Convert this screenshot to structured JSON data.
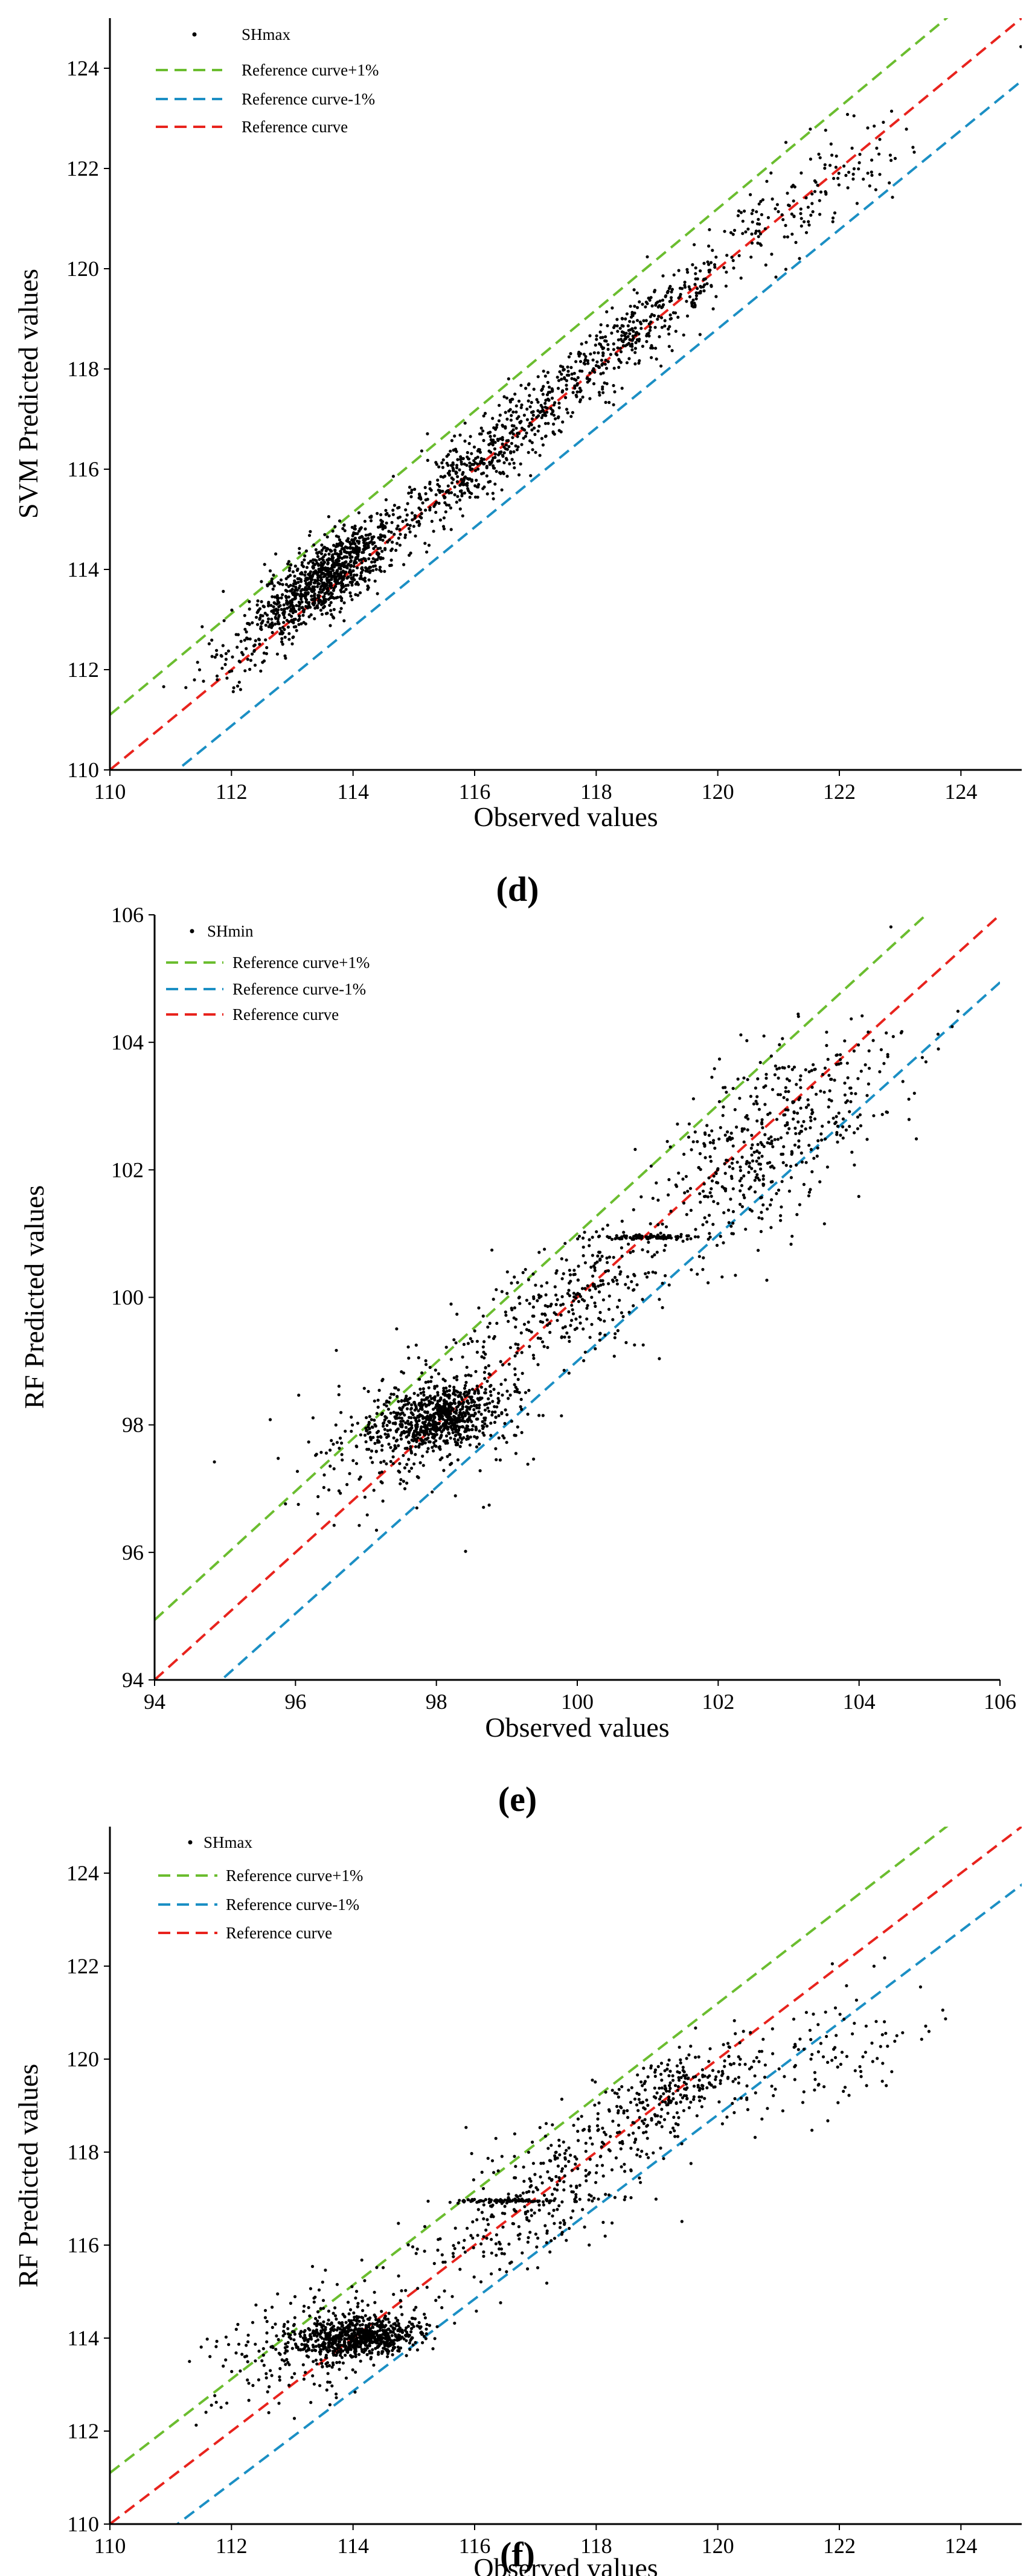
{
  "figure": {
    "panels": [
      "(d)",
      "(e)",
      "(f)"
    ],
    "panel_letters": [
      "d",
      "e",
      "f"
    ]
  },
  "chart_data": [
    {
      "type": "scatter",
      "title": "",
      "xlabel": "Observed values",
      "ylabel": "SVM Predicted values",
      "panel_label": "(d)",
      "xlim": [
        110,
        125
      ],
      "ylim": [
        110,
        125
      ],
      "xticks": [
        "110",
        "112",
        "114",
        "116",
        "118",
        "120",
        "122",
        "124"
      ],
      "yticks": [
        "110",
        "112",
        "114",
        "116",
        "118",
        "120",
        "122",
        "124"
      ],
      "legend": [
        "SHmax",
        "Reference curve+1%",
        "Reference curve-1%",
        "Reference curve"
      ],
      "legend_position": "top-left",
      "series": [
        {
          "name": "SHmax",
          "kind": "points",
          "color": "#000000",
          "clusters": [
            {
              "x": 113.6,
              "y": 113.9,
              "sx": 0.55,
              "sy": 0.55,
              "n": 900,
              "rho": 0.75
            },
            {
              "x": 116.2,
              "y": 116.3,
              "sx": 0.9,
              "sy": 0.9,
              "n": 500,
              "rho": 0.9
            },
            {
              "x": 118.6,
              "y": 118.7,
              "sx": 0.8,
              "sy": 0.8,
              "n": 350,
              "rho": 0.9
            },
            {
              "x": 121.2,
              "y": 121.2,
              "sx": 1.0,
              "sy": 0.9,
              "n": 170,
              "rho": 0.85
            },
            {
              "x": 112.4,
              "y": 112.6,
              "sx": 0.5,
              "sy": 0.5,
              "n": 120,
              "rho": 0.7
            }
          ]
        },
        {
          "name": "Reference curve+1%",
          "kind": "line",
          "color": "#6bbd2f",
          "factor": 1.01
        },
        {
          "name": "Reference curve-1%",
          "kind": "line",
          "color": "#1b8fc4",
          "factor": 0.99
        },
        {
          "name": "Reference curve",
          "kind": "line",
          "color": "#e8231d",
          "factor": 1.0
        }
      ]
    },
    {
      "type": "scatter",
      "title": "",
      "xlabel": "Observed values",
      "ylabel": "RF Predicted values",
      "panel_label": "(e)",
      "xlim": [
        94,
        106
      ],
      "ylim": [
        94,
        106
      ],
      "xticks": [
        "94",
        "96",
        "98",
        "100",
        "102",
        "104",
        "106"
      ],
      "yticks": [
        "94",
        "96",
        "98",
        "100",
        "102",
        "104",
        "106"
      ],
      "legend": [
        "SHmin",
        "Reference curve+1%",
        "Reference curve-1%",
        "Reference curve"
      ],
      "legend_position": "top-left",
      "series": [
        {
          "name": "SHmin",
          "kind": "points",
          "color": "#000000",
          "clusters": [
            {
              "x": 98.0,
              "y": 98.1,
              "sx": 0.45,
              "sy": 0.25,
              "n": 700,
              "rho": 0.3
            },
            {
              "x": 97.8,
              "y": 98.0,
              "sx": 0.9,
              "sy": 0.7,
              "n": 300,
              "rho": 0.5
            },
            {
              "x": 100.0,
              "y": 100.0,
              "sx": 0.8,
              "sy": 0.6,
              "n": 300,
              "rho": 0.6
            },
            {
              "x": 102.5,
              "y": 102.3,
              "sx": 0.65,
              "sy": 0.8,
              "n": 400,
              "rho": 0.5
            },
            {
              "x": 101.0,
              "y": 100.95,
              "sx": 0.35,
              "sy": 0.02,
              "n": 90,
              "rho": 0.0
            },
            {
              "x": 104.0,
              "y": 103.4,
              "sx": 0.6,
              "sy": 0.6,
              "n": 80,
              "rho": 0.4
            }
          ]
        },
        {
          "name": "Reference curve+1%",
          "kind": "line",
          "color": "#6bbd2f",
          "factor": 1.01
        },
        {
          "name": "Reference curve-1%",
          "kind": "line",
          "color": "#1b8fc4",
          "factor": 0.99
        },
        {
          "name": "Reference curve",
          "kind": "line",
          "color": "#e8231d",
          "factor": 1.0
        }
      ]
    },
    {
      "type": "scatter",
      "title": "",
      "xlabel": "Observed values",
      "ylabel": "RF Predicted values",
      "panel_label": "(f)",
      "xlim": [
        110,
        125
      ],
      "ylim": [
        110,
        125
      ],
      "xticks": [
        "110",
        "112",
        "114",
        "116",
        "118",
        "120",
        "122",
        "124"
      ],
      "yticks": [
        "110",
        "112",
        "114",
        "116",
        "118",
        "120",
        "122",
        "124"
      ],
      "legend": [
        "SHmax",
        "Reference curve+1%",
        "Reference curve-1%",
        "Reference curve"
      ],
      "legend_position": "top-left",
      "series": [
        {
          "name": "SHmax",
          "kind": "points",
          "color": "#000000",
          "clusters": [
            {
              "x": 114.1,
              "y": 114.0,
              "sx": 0.5,
              "sy": 0.22,
              "n": 650,
              "rho": 0.3
            },
            {
              "x": 113.5,
              "y": 114.0,
              "sx": 0.9,
              "sy": 0.7,
              "n": 300,
              "rho": 0.5
            },
            {
              "x": 117.2,
              "y": 117.2,
              "sx": 1.0,
              "sy": 1.0,
              "n": 350,
              "rho": 0.7
            },
            {
              "x": 116.6,
              "y": 116.95,
              "sx": 0.5,
              "sy": 0.02,
              "n": 90,
              "rho": 0.0
            },
            {
              "x": 119.3,
              "y": 119.3,
              "sx": 0.6,
              "sy": 0.5,
              "n": 220,
              "rho": 0.6
            },
            {
              "x": 121.5,
              "y": 120.0,
              "sx": 1.0,
              "sy": 0.8,
              "n": 130,
              "rho": 0.5
            }
          ]
        },
        {
          "name": "Reference curve+1%",
          "kind": "line",
          "color": "#6bbd2f",
          "factor": 1.01
        },
        {
          "name": "Reference curve-1%",
          "kind": "line",
          "color": "#1b8fc4",
          "factor": 0.99
        },
        {
          "name": "Reference curve",
          "kind": "line",
          "color": "#e8231d",
          "factor": 1.0
        }
      ]
    }
  ]
}
